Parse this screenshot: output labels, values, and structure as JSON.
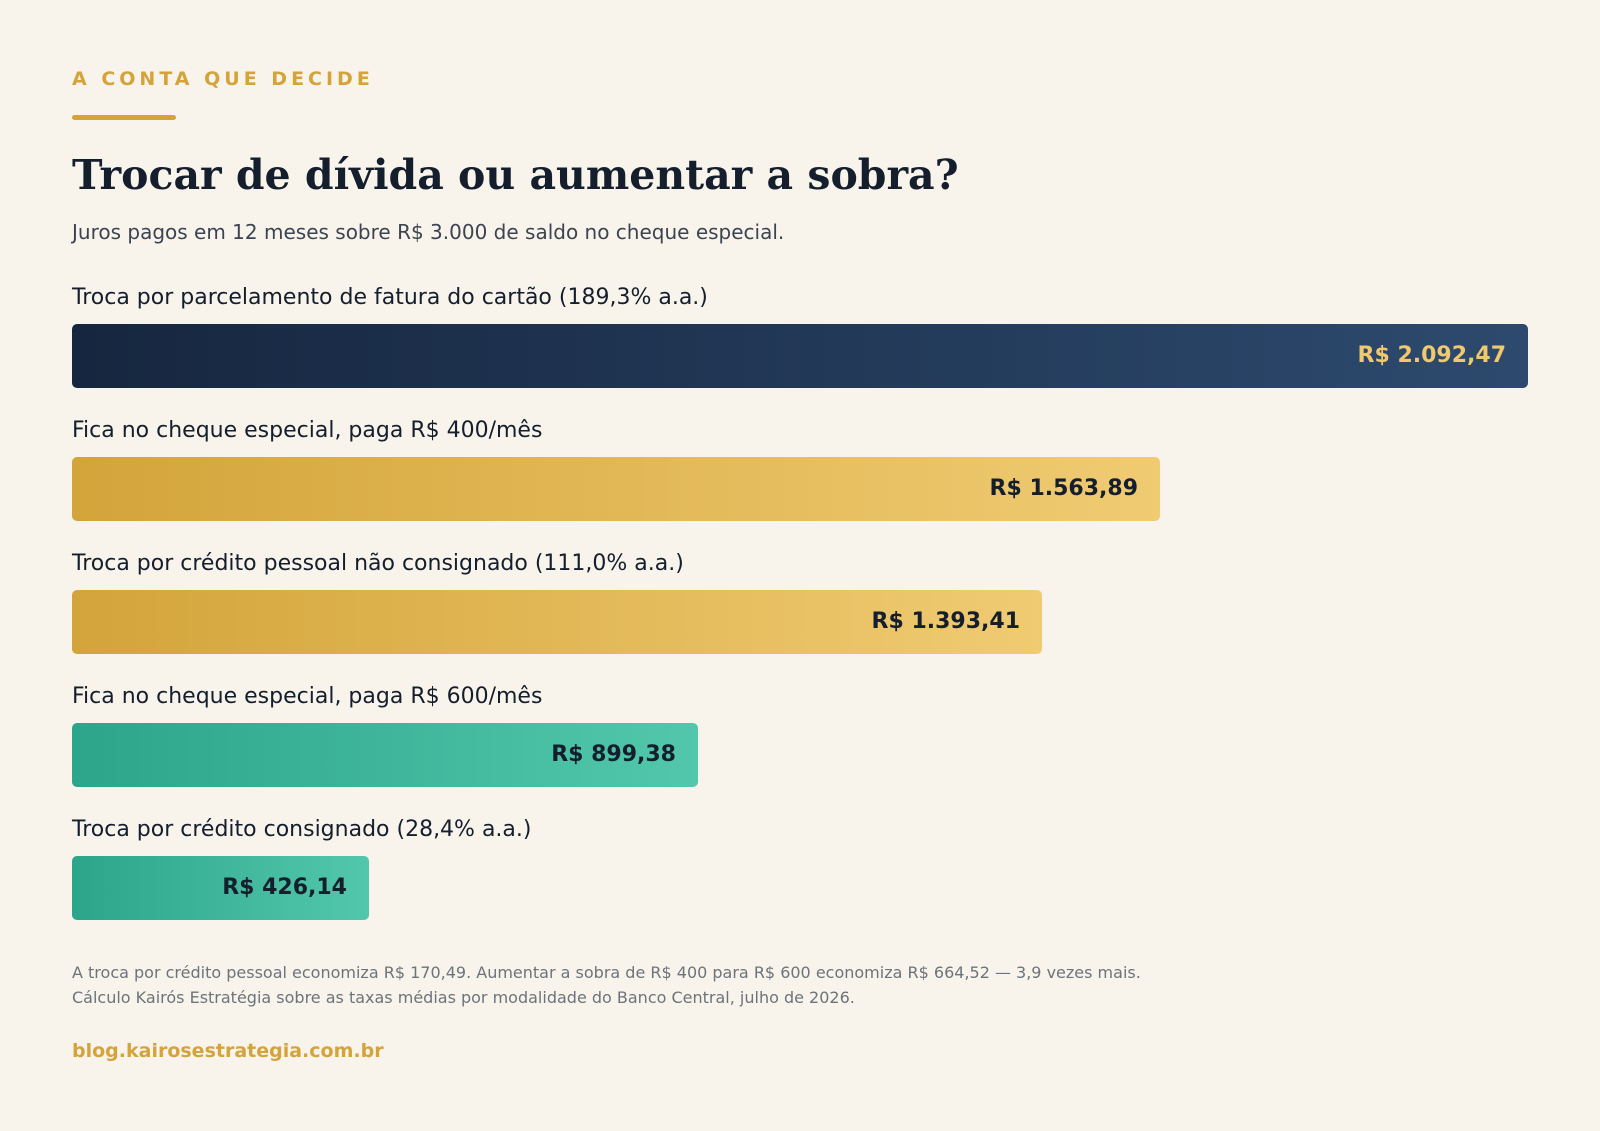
{
  "header": {
    "eyebrow": "A CONTA QUE DECIDE",
    "title": "Trocar de dívida ou aumentar a sobra?",
    "subtitle": "Juros pagos em 12 meses sobre R$ 3.000 de saldo no cheque especial."
  },
  "chart_data": {
    "type": "bar",
    "orientation": "horizontal",
    "title": "Trocar de dívida ou aumentar a sobra?",
    "subtitle": "Juros pagos em 12 meses sobre R$ 3.000 de saldo no cheque especial.",
    "xlabel": "",
    "ylabel": "",
    "xlim": [
      0,
      2092.47
    ],
    "grid": false,
    "legend": "none",
    "categories": [
      "Troca por parcelamento de fatura do cartão (189,3% a.a.)",
      "Fica no cheque especial, paga R$ 400/mês",
      "Troca por crédito pessoal não consignado (111,0% a.a.)",
      "Fica no cheque especial, paga R$ 600/mês",
      "Troca por crédito consignado (28,4% a.a.)"
    ],
    "values": [
      2092.47,
      1563.89,
      1393.41,
      899.38,
      426.14
    ],
    "value_labels": [
      "R$ 2.092,47",
      "R$ 1.563,89",
      "R$ 1.393,41",
      "R$ 899,38",
      "R$ 426,14"
    ],
    "colors": [
      "#1d3350",
      "#e2b656",
      "#e2b656",
      "#3cb499",
      "#3cb499"
    ]
  },
  "footer": {
    "note": "A troca por crédito pessoal economiza R$ 170,49. Aumentar a sobra de R$ 400 para R$ 600 economiza R$ 664,52 — 3,9 vezes mais.",
    "source": "Cálculo Kairós Estratégia sobre as taxas médias por modalidade do Banco Central, julho de 2026.",
    "site": "blog.kairosestrategia.com.br"
  }
}
